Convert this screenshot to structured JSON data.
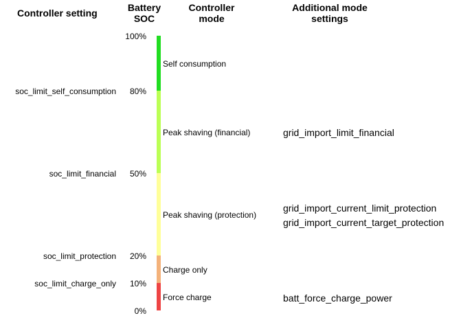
{
  "headers": {
    "setting": "Controller setting",
    "soc_line1": "Battery",
    "soc_line2": "SOC",
    "mode_line1": "Controller",
    "mode_line2": "mode",
    "additional_line1": "Additional mode",
    "additional_line2": "settings"
  },
  "soc_labels": {
    "p100": "100%",
    "p80": "80%",
    "p50": "50%",
    "p20": "20%",
    "p10": "10%",
    "p0": "0%"
  },
  "settings": {
    "self_consumption": "soc_limit_self_consumption",
    "financial": "soc_limit_financial",
    "protection": "soc_limit_protection",
    "charge_only": "soc_limit_charge_only"
  },
  "modes": {
    "self_consumption": "Self consumption",
    "peak_financial": "Peak shaving (financial)",
    "peak_protection": "Peak shaving (protection)",
    "charge_only": "Charge only",
    "force_charge": "Force charge"
  },
  "additional": {
    "financial": "grid_import_limit_financial",
    "protection_1": "grid_import_current_limit_protection",
    "protection_2": "grid_import_current_target_protection",
    "force_charge": "batt_force_charge_power"
  },
  "bar_colors": {
    "self_consumption": "#22dd22",
    "peak_financial": "#bbff55",
    "peak_protection": "#ffff99",
    "charge_only": "#f4b27a",
    "force_charge": "#ee4444"
  }
}
